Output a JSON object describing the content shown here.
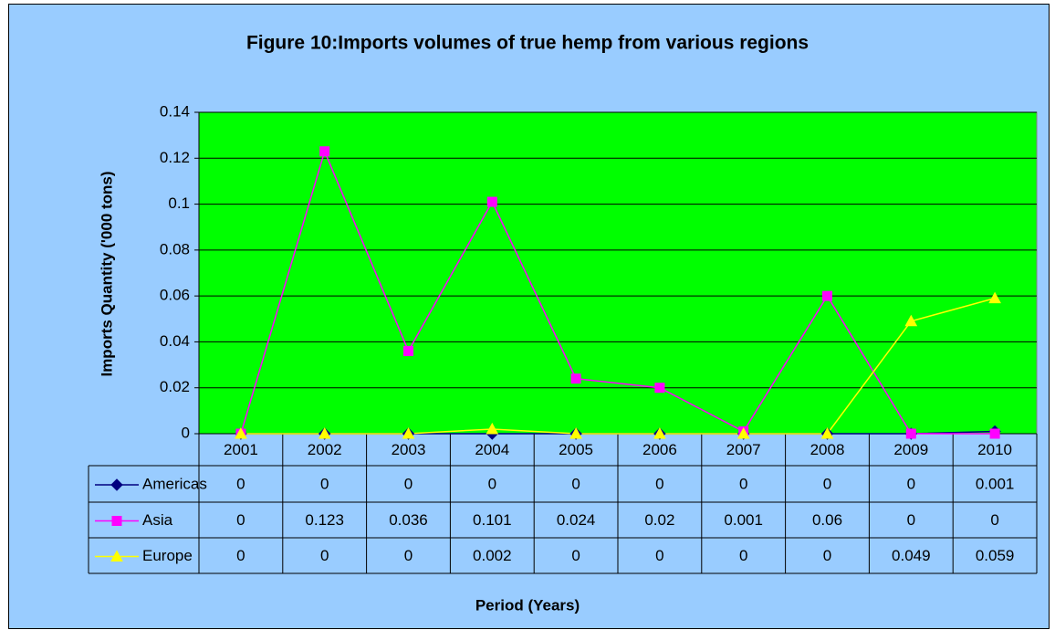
{
  "chart_data": {
    "type": "line",
    "title": "Figure 10:Imports volumes of true hemp from various regions",
    "x_label": "Period (Years)",
    "y_label": "Imports Quantity ('000 tons)",
    "categories": [
      "2001",
      "2002",
      "2003",
      "2004",
      "2005",
      "2006",
      "2007",
      "2008",
      "2009",
      "2010"
    ],
    "series": [
      {
        "name": "Americas",
        "color": "#000080",
        "marker": "diamond",
        "values": [
          0,
          0,
          0,
          0,
          0,
          0,
          0,
          0,
          0,
          0.001
        ]
      },
      {
        "name": "Asia",
        "color": "#ff00ff",
        "marker": "square",
        "values": [
          0,
          0.123,
          0.036,
          0.101,
          0.024,
          0.02,
          0.001,
          0.06,
          0,
          0
        ]
      },
      {
        "name": "Europe",
        "color": "#ffff00",
        "marker": "triangle",
        "values": [
          0,
          0,
          0,
          0.002,
          0,
          0,
          0,
          0,
          0.049,
          0.059
        ]
      }
    ],
    "ylim": [
      0,
      0.14
    ],
    "yticks": [
      0,
      0.02,
      0.04,
      0.06,
      0.08,
      0.1,
      0.12,
      0.14
    ],
    "grid": true,
    "plot_background": "#00ff00",
    "background": "#99ccff"
  }
}
